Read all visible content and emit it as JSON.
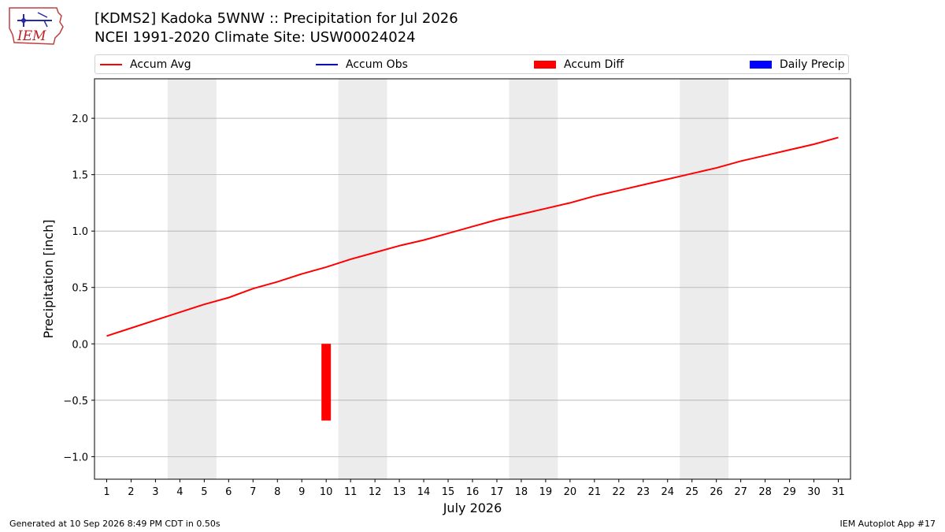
{
  "logo": {
    "text": "IEM",
    "icon": "iowa-state-weather-logo"
  },
  "title": {
    "line1": "[KDMS2] Kadoka 5WNW :: Precipitation for Jul 2026",
    "line2": "NCEI 1991-2020 Climate Site: USW00024024"
  },
  "legend": [
    {
      "label": "Accum Avg",
      "kind": "line",
      "color": "#ff0000"
    },
    {
      "label": "Accum Obs",
      "kind": "line",
      "color": "#0000ff"
    },
    {
      "label": "Accum Diff",
      "kind": "bar",
      "color": "#ff0000"
    },
    {
      "label": "Daily Precip",
      "kind": "bar",
      "color": "#0000ff"
    }
  ],
  "footer": {
    "left": "Generated at 10 Sep 2026 8:49 PM CDT in 0.50s",
    "right": "IEM Autoplot App #17"
  },
  "chart_data": {
    "type": "line",
    "xlabel": "July 2026",
    "ylabel": "Precipitation [inch]",
    "xlim": [
      0.5,
      31.5
    ],
    "ylim": [
      -1.2,
      2.35
    ],
    "yticks": [
      -1.0,
      -0.5,
      0.0,
      0.5,
      1.0,
      1.5,
      2.0
    ],
    "ytick_labels": [
      "−1.0",
      "−0.5",
      "0.0",
      "0.5",
      "1.0",
      "1.5",
      "2.0"
    ],
    "xticks": [
      1,
      2,
      3,
      4,
      5,
      6,
      7,
      8,
      9,
      10,
      11,
      12,
      13,
      14,
      15,
      16,
      17,
      18,
      19,
      20,
      21,
      22,
      23,
      24,
      25,
      26,
      27,
      28,
      29,
      30,
      31
    ],
    "grid": "horizontal",
    "weekend_shading": [
      [
        3.5,
        5.5
      ],
      [
        10.5,
        12.5
      ],
      [
        17.5,
        19.5
      ],
      [
        24.5,
        26.5
      ]
    ],
    "series": [
      {
        "name": "Accum Avg",
        "type": "line",
        "color": "#ff0000",
        "x": [
          1,
          2,
          3,
          4,
          5,
          6,
          7,
          8,
          9,
          10,
          11,
          12,
          13,
          14,
          15,
          16,
          17,
          18,
          19,
          20,
          21,
          22,
          23,
          24,
          25,
          26,
          27,
          28,
          29,
          30,
          31
        ],
        "values": [
          0.07,
          0.14,
          0.21,
          0.28,
          0.35,
          0.41,
          0.49,
          0.55,
          0.62,
          0.68,
          0.75,
          0.81,
          0.87,
          0.92,
          0.98,
          1.04,
          1.1,
          1.15,
          1.2,
          1.25,
          1.31,
          1.36,
          1.41,
          1.46,
          1.51,
          1.56,
          1.62,
          1.67,
          1.72,
          1.77,
          1.83
        ]
      },
      {
        "name": "Accum Diff",
        "type": "bar",
        "color": "#ff0000",
        "x": [
          10
        ],
        "values": [
          -0.68
        ]
      }
    ]
  }
}
